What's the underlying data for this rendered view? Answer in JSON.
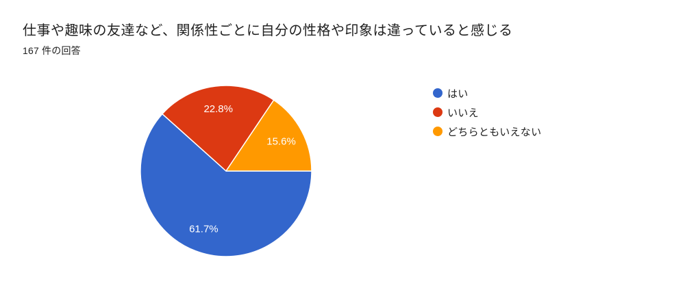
{
  "chart_data": {
    "type": "pie",
    "title": "仕事や趣味の友達など、関係性ごとに自分の性格や印象は違っていると感じる",
    "subtitle": "167 件の回答",
    "response_count": 167,
    "labels": [
      "はい",
      "いいえ",
      "どちらともいえない"
    ],
    "values": [
      61.7,
      22.8,
      15.6
    ],
    "value_unit": "percent",
    "percent_labels": [
      "61.7%",
      "22.8%",
      "15.6%"
    ],
    "colors": [
      "#3366cc",
      "#dc3912",
      "#ff9900"
    ],
    "start_angle_deg": 0,
    "direction": "clockwise",
    "legend_position": "right",
    "slice_label_color": "#ffffff",
    "slice_border_color": "#ffffff"
  }
}
